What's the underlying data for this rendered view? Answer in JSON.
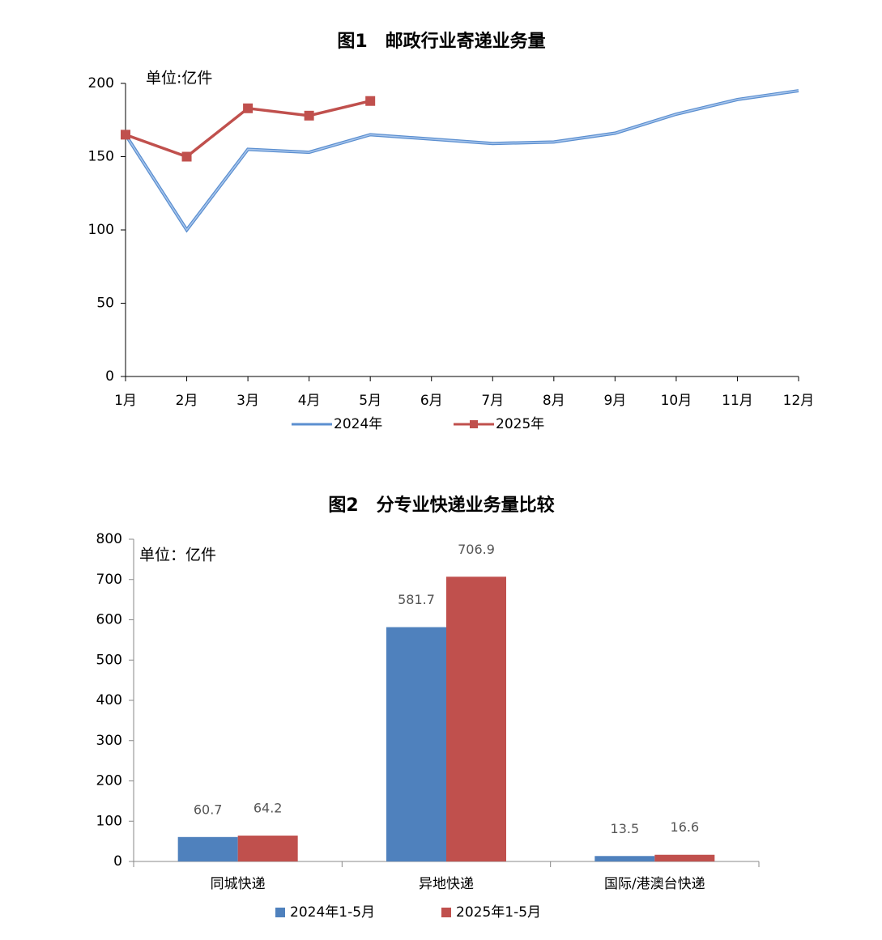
{
  "chart_data": [
    {
      "type": "line",
      "title": "图1　邮政行业寄递业务量",
      "annotation": "单位:亿件",
      "categories": [
        "1月",
        "2月",
        "3月",
        "4月",
        "5月",
        "6月",
        "7月",
        "8月",
        "9月",
        "10月",
        "11月",
        "12月"
      ],
      "series": [
        {
          "name": "2024年",
          "color": "#5b8fd0",
          "values": [
            165,
            100,
            155,
            153,
            165,
            162,
            159,
            160,
            166,
            179,
            189,
            195
          ]
        },
        {
          "name": "2025年",
          "color": "#c0504d",
          "values": [
            165,
            150,
            183,
            178,
            188,
            null,
            null,
            null,
            null,
            null,
            null,
            null
          ]
        }
      ],
      "ylim": [
        0,
        200
      ],
      "yticks": [
        0,
        50,
        100,
        150,
        200
      ]
    },
    {
      "type": "bar",
      "title": "图2　分专业快递业务量比较",
      "annotation": "单位：亿件",
      "categories": [
        "同城快递",
        "异地快递",
        "国际/港澳台快递"
      ],
      "series": [
        {
          "name": "2024年1-5月",
          "color": "#4f81bd",
          "values": [
            60.7,
            581.7,
            13.5
          ]
        },
        {
          "name": "2025年1-5月",
          "color": "#c0504d",
          "values": [
            64.2,
            706.9,
            16.6
          ]
        }
      ],
      "ylim": [
        0,
        800
      ],
      "yticks": [
        0,
        100,
        200,
        300,
        400,
        500,
        600,
        700,
        800
      ]
    }
  ]
}
